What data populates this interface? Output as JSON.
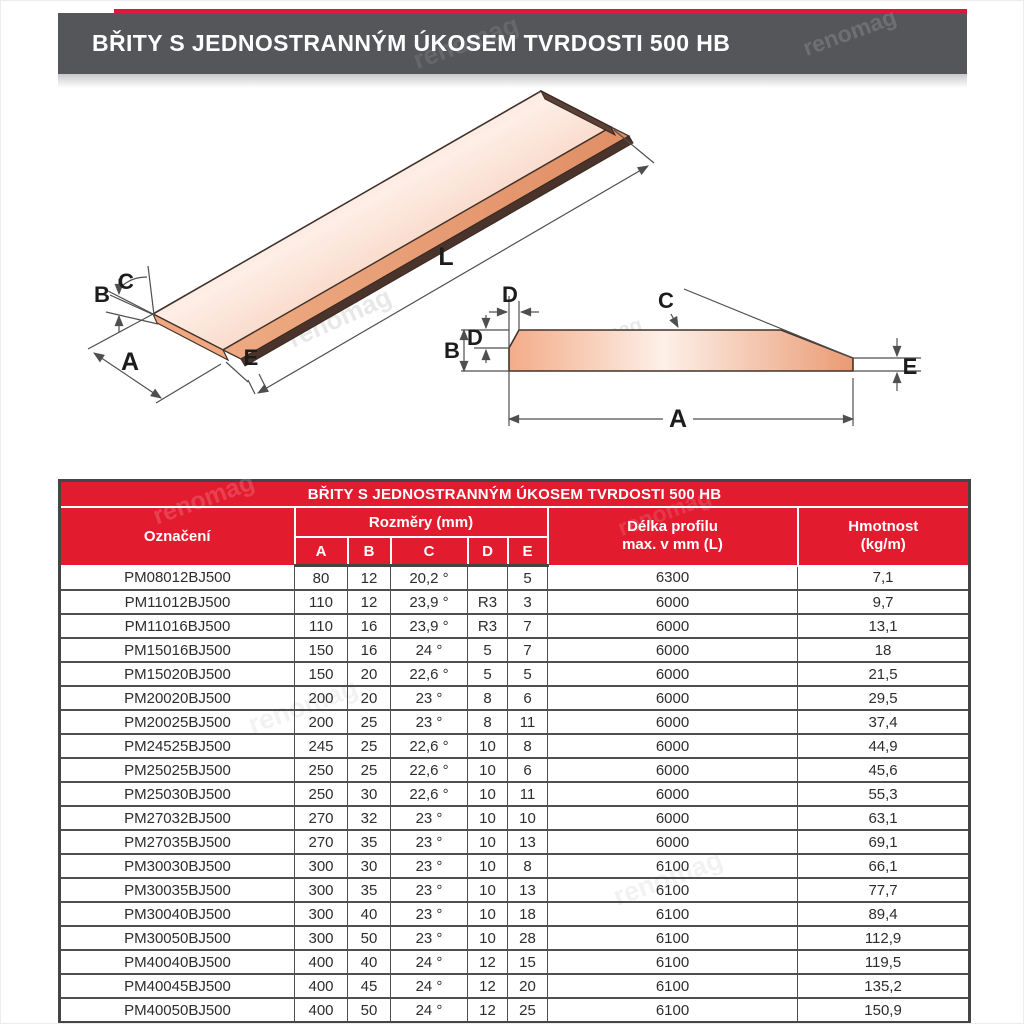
{
  "watermark": "renomag",
  "header": {
    "title": "BŘITY S JEDNOSTRANNÝM ÚKOSEM TVRDOSTI 500 HB"
  },
  "colors": {
    "header_bar": "#54565a",
    "header_stripe_red": "#e0173c",
    "table_header_red": "#e31b2e",
    "blade_fill_light": "#fdeee6",
    "blade_fill_salmon": "#f0a27c",
    "drawing_outline": "#41332b"
  },
  "diagram": {
    "labels": {
      "L": "L",
      "A": "A",
      "B": "B",
      "C": "C",
      "D": "D",
      "E": "E"
    }
  },
  "table": {
    "title": "BŘITY S JEDNOSTRANNÝM ÚKOSEM TVRDOSTI 500 HB",
    "col_oznaceni": "Označení",
    "col_rozmery": "Rozměry (mm)",
    "dims": [
      "A",
      "B",
      "C",
      "D",
      "E"
    ],
    "col_delka_line1": "Délka profilu",
    "col_delka_line2": "max. v mm (L)",
    "col_hmotnost_line1": "Hmotnost",
    "col_hmotnost_line2": "(kg/m)",
    "rows": [
      [
        "PM08012BJ500",
        "80",
        "12",
        "20,2 °",
        "",
        "5",
        "6300",
        "7,1"
      ],
      [
        "PM11012BJ500",
        "110",
        "12",
        "23,9 °",
        "R3",
        "3",
        "6000",
        "9,7"
      ],
      [
        "PM11016BJ500",
        "110",
        "16",
        "23,9 °",
        "R3",
        "7",
        "6000",
        "13,1"
      ],
      [
        "PM15016BJ500",
        "150",
        "16",
        "24 °",
        "5",
        "7",
        "6000",
        "18"
      ],
      [
        "PM15020BJ500",
        "150",
        "20",
        "22,6 °",
        "5",
        "5",
        "6000",
        "21,5"
      ],
      [
        "PM20020BJ500",
        "200",
        "20",
        "23 °",
        "8",
        "6",
        "6000",
        "29,5"
      ],
      [
        "PM20025BJ500",
        "200",
        "25",
        "23 °",
        "8",
        "11",
        "6000",
        "37,4"
      ],
      [
        "PM24525BJ500",
        "245",
        "25",
        "22,6 °",
        "10",
        "8",
        "6000",
        "44,9"
      ],
      [
        "PM25025BJ500",
        "250",
        "25",
        "22,6 °",
        "10",
        "6",
        "6000",
        "45,6"
      ],
      [
        "PM25030BJ500",
        "250",
        "30",
        "22,6 °",
        "10",
        "11",
        "6000",
        "55,3"
      ],
      [
        "PM27032BJ500",
        "270",
        "32",
        "23 °",
        "10",
        "10",
        "6000",
        "63,1"
      ],
      [
        "PM27035BJ500",
        "270",
        "35",
        "23 °",
        "10",
        "13",
        "6000",
        "69,1"
      ],
      [
        "PM30030BJ500",
        "300",
        "30",
        "23 °",
        "10",
        "8",
        "6100",
        "66,1"
      ],
      [
        "PM30035BJ500",
        "300",
        "35",
        "23 °",
        "10",
        "13",
        "6100",
        "77,7"
      ],
      [
        "PM30040BJ500",
        "300",
        "40",
        "23 °",
        "10",
        "18",
        "6100",
        "89,4"
      ],
      [
        "PM30050BJ500",
        "300",
        "50",
        "23 °",
        "10",
        "28",
        "6100",
        "112,9"
      ],
      [
        "PM40040BJ500",
        "400",
        "40",
        "24 °",
        "12",
        "15",
        "6100",
        "119,5"
      ],
      [
        "PM40045BJ500",
        "400",
        "45",
        "24 °",
        "12",
        "20",
        "6100",
        "135,2"
      ],
      [
        "PM40050BJ500",
        "400",
        "50",
        "24 °",
        "12",
        "25",
        "6100",
        "150,9"
      ]
    ]
  }
}
